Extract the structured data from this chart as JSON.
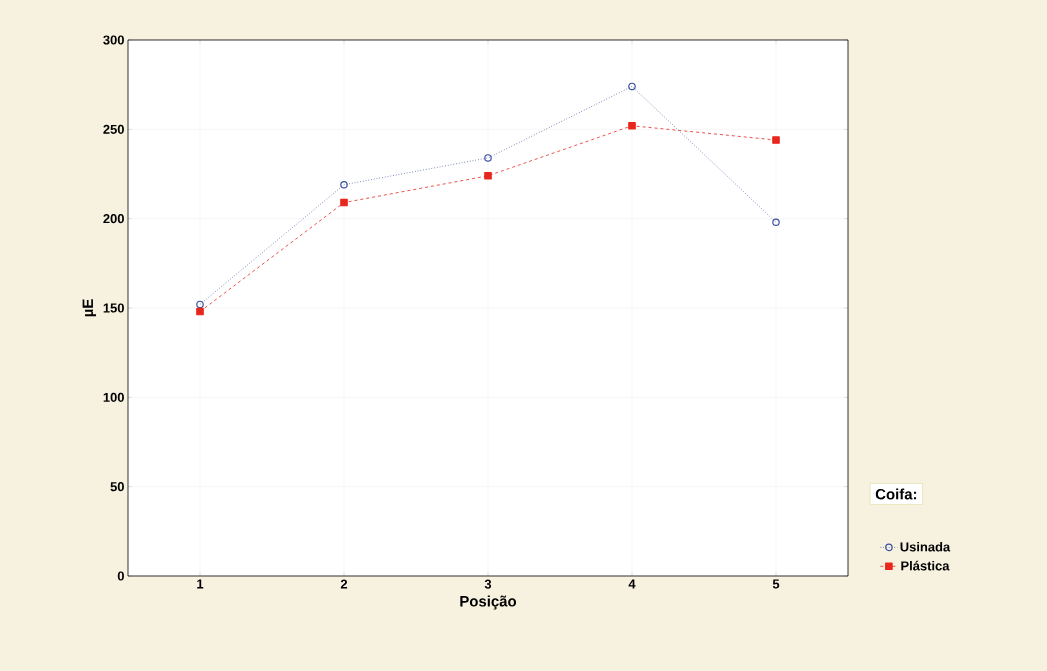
{
  "chart_data": {
    "type": "line",
    "xlabel": "Posição",
    "ylabel": "µE",
    "legend_title": "Coifa:",
    "categories": [
      "1",
      "2",
      "3",
      "4",
      "5"
    ],
    "series": [
      {
        "name": "Usinada",
        "color": "#3a4fa0",
        "values": [
          152,
          219,
          234,
          274,
          198
        ],
        "marker": "circle",
        "line_style": "dotted"
      },
      {
        "name": "Plástica",
        "color": "#e8261c",
        "values": [
          148,
          209,
          224,
          252,
          244
        ],
        "marker": "square",
        "line_style": "dashed"
      }
    ],
    "ylim": [
      0,
      300
    ],
    "yticks": [
      0,
      50,
      100,
      150,
      200,
      250,
      300
    ],
    "grid": true,
    "legend": "right"
  }
}
